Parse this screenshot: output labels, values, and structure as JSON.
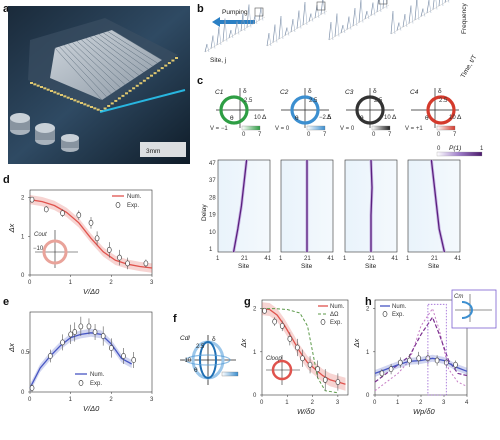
{
  "panel_labels": {
    "a": "a",
    "b": "b",
    "c": "c",
    "d": "d",
    "e": "e",
    "f": "f",
    "g": "g",
    "h": "h"
  },
  "a": {
    "scale_bar": "3mm"
  },
  "b": {
    "pumping": "Pumping",
    "frequency": "Frequency",
    "time_axis": "Time, t/T",
    "site_axis": "Site, j"
  },
  "c": {
    "circles": [
      {
        "name": "C1",
        "vlabel": "V = −1",
        "tick_lo": "0",
        "tick_hi": "7",
        "color": "#2e9e44"
      },
      {
        "name": "C2",
        "vlabel": "V = 0",
        "tick_lo": "0",
        "tick_hi": "7",
        "color": "#3c8fd0"
      },
      {
        "name": "C3",
        "vlabel": "V = 0",
        "tick_lo": "0",
        "tick_hi": "7",
        "color": "#333333"
      },
      {
        "name": "C4",
        "vlabel": "V = +1",
        "tick_lo": "0",
        "tick_hi": "7",
        "color": "#d43a2c"
      }
    ],
    "delta_label": "δ",
    "theta_label": "θ",
    "Delta_label": "Δ",
    "r25": "2.5",
    "r10": "10",
    "r_m25": "−2.5",
    "r_m10": "−10",
    "heat_ylabel": "Delay",
    "heat_yticks": [
      "47",
      "37",
      "28",
      "19",
      "10",
      "1"
    ],
    "heat_xticks": [
      "1",
      "21",
      "41"
    ],
    "heat_xlabel": "Site",
    "cbar_label": "P(1)",
    "cbar_lo": "0",
    "cbar_hi": "1"
  },
  "d": {
    "ylabel": "Δx",
    "xlabel": "V/Δ0",
    "legend": [
      "Num.",
      "Exp."
    ],
    "inset_label": "Cout",
    "inset_tick": "−10",
    "chart_data": {
      "type": "line",
      "xlim": [
        0,
        3
      ],
      "ylim": [
        0,
        2.2
      ],
      "xticks": [
        0,
        1,
        2,
        3
      ],
      "yticks": [
        0,
        1,
        2
      ],
      "num": {
        "x": [
          0,
          0.3,
          0.6,
          0.9,
          1.2,
          1.5,
          1.8,
          2.1,
          2.4,
          2.7,
          3.0
        ],
        "y": [
          1.95,
          1.9,
          1.8,
          1.62,
          1.35,
          0.95,
          0.6,
          0.38,
          0.28,
          0.22,
          0.18
        ]
      },
      "exp": {
        "x": [
          0.05,
          0.4,
          0.8,
          1.2,
          1.5,
          1.65,
          1.95,
          2.2,
          2.4,
          2.85
        ],
        "y": [
          1.95,
          1.7,
          1.6,
          1.55,
          1.35,
          0.95,
          0.65,
          0.45,
          0.3,
          0.3
        ],
        "err": [
          0.05,
          0.08,
          0.1,
          0.12,
          0.15,
          0.18,
          0.2,
          0.2,
          0.15,
          0.1
        ]
      }
    }
  },
  "e": {
    "ylabel": "Δx",
    "xlabel": "V/Δ0",
    "legend": [
      "Num.",
      "Exp."
    ],
    "chart_data": {
      "type": "line",
      "xlim": [
        0,
        3
      ],
      "ylim": [
        0,
        1.0
      ],
      "xticks": [
        0,
        1,
        2,
        3
      ],
      "yticks": [
        0,
        0.5
      ],
      "num": {
        "x": [
          0,
          0.25,
          0.5,
          0.75,
          1.0,
          1.25,
          1.5,
          1.75,
          2.0,
          2.25,
          2.5
        ],
        "y": [
          0.05,
          0.3,
          0.45,
          0.58,
          0.68,
          0.72,
          0.74,
          0.72,
          0.6,
          0.42,
          0.35
        ]
      },
      "exp": {
        "x": [
          0.05,
          0.5,
          0.8,
          1.0,
          1.1,
          1.25,
          1.45,
          1.6,
          1.8,
          2.0,
          2.3,
          2.55
        ],
        "y": [
          0.05,
          0.45,
          0.62,
          0.72,
          0.75,
          0.82,
          0.82,
          0.75,
          0.7,
          0.55,
          0.45,
          0.4
        ],
        "err": [
          0.05,
          0.08,
          0.1,
          0.12,
          0.12,
          0.12,
          0.1,
          0.1,
          0.12,
          0.12,
          0.1,
          0.1
        ]
      }
    }
  },
  "f": {
    "label": "Cdl",
    "r25": "2.5",
    "rm10": "−10",
    "delta": "δ",
    "theta": "θ"
  },
  "g": {
    "ylabel": "Δx",
    "xlabel": "W/δ0",
    "legend": [
      "Num.",
      "ΔΩ",
      "Exp."
    ],
    "inset_label": "Cloop",
    "chart_data": {
      "type": "line",
      "xlim": [
        0,
        3.4
      ],
      "ylim": [
        0,
        2.2
      ],
      "xticks": [
        0,
        1,
        2,
        3
      ],
      "yticks": [
        0,
        1,
        2
      ],
      "num": {
        "x": [
          0,
          0.3,
          0.6,
          0.9,
          1.2,
          1.5,
          1.8,
          2.1,
          2.4,
          2.7,
          3.0,
          3.3
        ],
        "y": [
          2.0,
          1.98,
          1.85,
          1.6,
          1.3,
          1.0,
          0.75,
          0.6,
          0.45,
          0.35,
          0.3,
          0.25
        ]
      },
      "dashed": {
        "x": [
          0,
          0.5,
          1.0,
          1.5,
          1.8,
          2.0,
          2.2,
          2.5,
          3.0
        ],
        "y": [
          2.0,
          2.0,
          1.98,
          1.9,
          1.6,
          1.0,
          0.4,
          0.1,
          0.05
        ]
      },
      "exp": {
        "x": [
          0.1,
          0.5,
          0.8,
          1.1,
          1.4,
          1.6,
          1.9,
          2.2,
          2.5,
          3.0
        ],
        "y": [
          1.95,
          1.7,
          1.6,
          1.3,
          1.1,
          0.85,
          0.7,
          0.6,
          0.35,
          0.3
        ],
        "err": [
          0.05,
          0.1,
          0.12,
          0.15,
          0.2,
          0.2,
          0.2,
          0.2,
          0.25,
          0.2
        ]
      }
    }
  },
  "h": {
    "ylabel": "Δx",
    "xlabel": "Wp/δ0",
    "legend": [
      "Num.",
      "Exp."
    ],
    "inset_label": "Cm",
    "chart_data": {
      "type": "line",
      "xlim": [
        0,
        4
      ],
      "ylim": [
        0,
        2.2
      ],
      "xticks": [
        0,
        1,
        2,
        3,
        4
      ],
      "yticks": [
        0,
        1,
        2
      ],
      "num_blue": {
        "x": [
          0,
          0.5,
          1.0,
          1.5,
          2.0,
          2.5,
          3.0,
          3.5,
          4.0
        ],
        "y": [
          0.5,
          0.6,
          0.7,
          0.78,
          0.8,
          0.85,
          0.8,
          0.65,
          0.55
        ]
      },
      "num_purple": {
        "x": [
          0,
          0.5,
          1.0,
          1.5,
          2.0,
          2.5,
          2.8,
          3.2,
          3.6,
          4.0
        ],
        "y": [
          0.3,
          0.5,
          0.7,
          0.9,
          1.4,
          1.8,
          1.4,
          0.8,
          0.5,
          0.45
        ]
      },
      "num_pink": {
        "x": [
          0,
          0.5,
          1.0,
          1.5,
          2.0,
          2.5,
          2.8,
          3.2,
          3.6,
          4.0
        ],
        "y": [
          0.1,
          0.3,
          0.5,
          0.8,
          1.6,
          2.0,
          1.5,
          0.6,
          0.3,
          0.2
        ]
      },
      "exp": {
        "x": [
          0.3,
          0.7,
          1.1,
          1.5,
          1.9,
          2.3,
          2.7,
          3.1,
          3.5
        ],
        "y": [
          0.5,
          0.6,
          0.75,
          0.8,
          0.85,
          0.85,
          0.8,
          0.75,
          0.7
        ],
        "err": [
          0.1,
          0.12,
          0.12,
          0.15,
          0.15,
          0.15,
          0.12,
          0.12,
          0.1
        ]
      }
    }
  }
}
